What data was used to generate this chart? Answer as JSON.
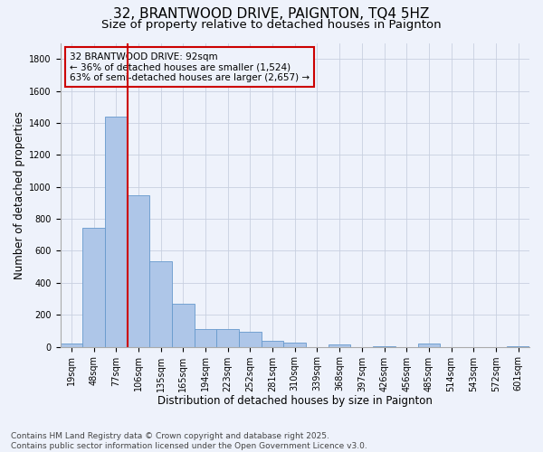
{
  "title": "32, BRANTWOOD DRIVE, PAIGNTON, TQ4 5HZ",
  "subtitle": "Size of property relative to detached houses in Paignton",
  "xlabel": "Distribution of detached houses by size in Paignton",
  "ylabel": "Number of detached properties",
  "categories": [
    "19sqm",
    "48sqm",
    "77sqm",
    "106sqm",
    "135sqm",
    "165sqm",
    "194sqm",
    "223sqm",
    "252sqm",
    "281sqm",
    "310sqm",
    "339sqm",
    "368sqm",
    "397sqm",
    "426sqm",
    "456sqm",
    "485sqm",
    "514sqm",
    "543sqm",
    "572sqm",
    "601sqm"
  ],
  "values": [
    20,
    745,
    1440,
    945,
    535,
    270,
    110,
    110,
    95,
    40,
    25,
    0,
    15,
    0,
    5,
    0,
    20,
    0,
    0,
    0,
    5
  ],
  "bar_color": "#aec6e8",
  "bar_edge_color": "#6699cc",
  "background_color": "#eef2fb",
  "grid_color": "#c8d0e0",
  "vline_color": "#cc0000",
  "vline_x_index": 2,
  "annotation_text": "32 BRANTWOOD DRIVE: 92sqm\n← 36% of detached houses are smaller (1,524)\n63% of semi-detached houses are larger (2,657) →",
  "footer": "Contains HM Land Registry data © Crown copyright and database right 2025.\nContains public sector information licensed under the Open Government Licence v3.0.",
  "ylim": [
    0,
    1900
  ],
  "yticks": [
    0,
    200,
    400,
    600,
    800,
    1000,
    1200,
    1400,
    1600,
    1800
  ],
  "title_fontsize": 11,
  "subtitle_fontsize": 9.5,
  "axis_label_fontsize": 8.5,
  "tick_fontsize": 7,
  "annotation_fontsize": 7.5,
  "footer_fontsize": 6.5
}
